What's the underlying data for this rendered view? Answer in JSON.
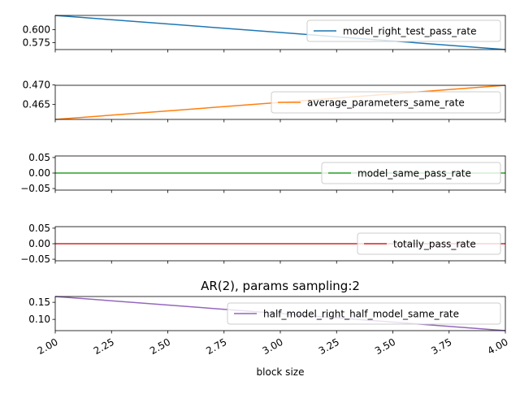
{
  "chart_data": {
    "type": "line",
    "title": "AR(2), params sampling:2",
    "xlabel": "block size",
    "xlim": [
      2.0,
      4.0
    ],
    "x": [
      2.0,
      4.0
    ],
    "x_ticks": [
      "2.00",
      "2.25",
      "2.50",
      "2.75",
      "3.00",
      "3.25",
      "3.50",
      "3.75",
      "4.00"
    ],
    "legend_placement": "right",
    "grid": false,
    "subplots": [
      {
        "series": [
          {
            "name": "model_right_test_pass_rate",
            "values": [
              0.627,
              0.562
            ],
            "color": "#1f77b4"
          }
        ],
        "ylim": [
          0.562,
          0.627
        ],
        "y_ticks": [
          0.575,
          0.6
        ],
        "y_tick_labels": [
          "0.575",
          "0.600"
        ]
      },
      {
        "series": [
          {
            "name": "average_parameters_same_rate",
            "values": [
              0.4612,
              0.4699
            ],
            "color": "#ff7f0e"
          }
        ],
        "ylim": [
          0.4612,
          0.4699
        ],
        "y_ticks": [
          0.465,
          0.47
        ],
        "y_tick_labels": [
          "0.465",
          "0.470"
        ]
      },
      {
        "series": [
          {
            "name": "model_same_pass_rate",
            "values": [
              0.0,
              0.0
            ],
            "color": "#2ca02c"
          }
        ],
        "ylim": [
          -0.055,
          0.055
        ],
        "y_ticks": [
          -0.05,
          0.0,
          0.05
        ],
        "y_tick_labels": [
          "−0.05",
          "0.00",
          "0.05"
        ]
      },
      {
        "series": [
          {
            "name": "totally_pass_rate",
            "values": [
              0.0,
              0.0
            ],
            "color": "#d62728"
          }
        ],
        "ylim": [
          -0.055,
          0.055
        ],
        "y_ticks": [
          -0.05,
          0.0,
          0.05
        ],
        "y_tick_labels": [
          "−0.05",
          "0.00",
          "0.05"
        ]
      },
      {
        "series": [
          {
            "name": "half_model_right_half_model_same_rate",
            "values": [
              0.167,
              0.067
            ],
            "color": "#9467bd"
          }
        ],
        "ylim": [
          0.067,
          0.167
        ],
        "y_ticks": [
          0.1,
          0.15
        ],
        "y_tick_labels": [
          "0.10",
          "0.15"
        ]
      }
    ]
  }
}
